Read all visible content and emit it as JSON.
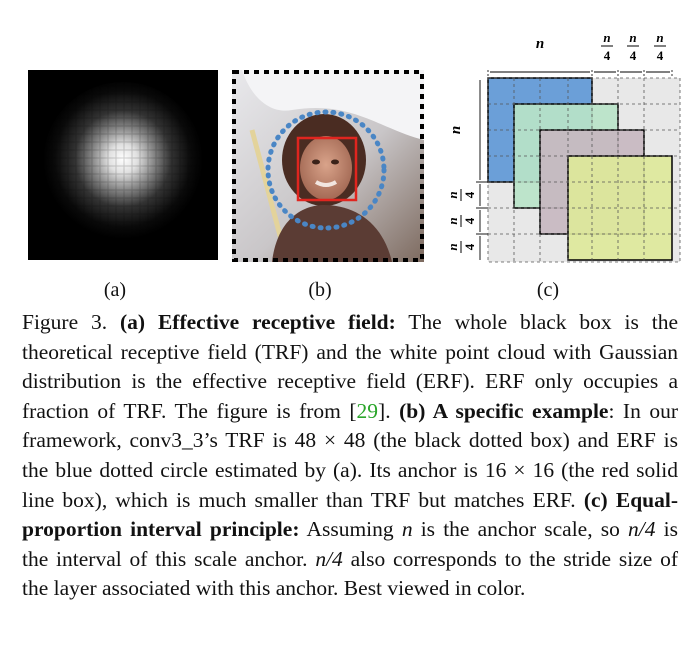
{
  "figure": {
    "panels": [
      {
        "id": "a",
        "label": "(a)"
      },
      {
        "id": "b",
        "label": "(b)"
      },
      {
        "id": "c",
        "label": "(c)"
      }
    ],
    "panel_c": {
      "top_label": "n",
      "left_label": "n",
      "quarter_num": "n",
      "quarter_den": "4"
    },
    "caption": {
      "fig_label": "Figure 3.",
      "a_head": "(a) Effective receptive field:",
      "a_body": " The whole black box is the theoretical receptive field (TRF) and the white point cloud with Gaussian distribution is the effective receptive field (ERF). ERF only occupies a fraction of TRF. The figure is from [",
      "cite": "29",
      "a_tail": "].  ",
      "b_head": "(b) A specific example",
      "b_body": ": In our framework, conv3_3’s TRF is 48 × 48 (the black dotted box) and ERF is the blue dotted circle estimated by (a).  Its anchor is 16 × 16 (the red solid line box), which is much smaller than TRF but matches ERF. ",
      "c_head": "(c) Equal-proportion interval principle:",
      "c_body_1": " Assuming ",
      "c_n1": "n",
      "c_body_2": " is the anchor scale, so ",
      "c_n2": "n/4",
      "c_body_3": " is the interval of this scale anchor.  ",
      "c_n3": "n/4",
      "c_body_4": " also corresponds to the stride size of the layer associated with this anchor. Best viewed in color."
    }
  }
}
